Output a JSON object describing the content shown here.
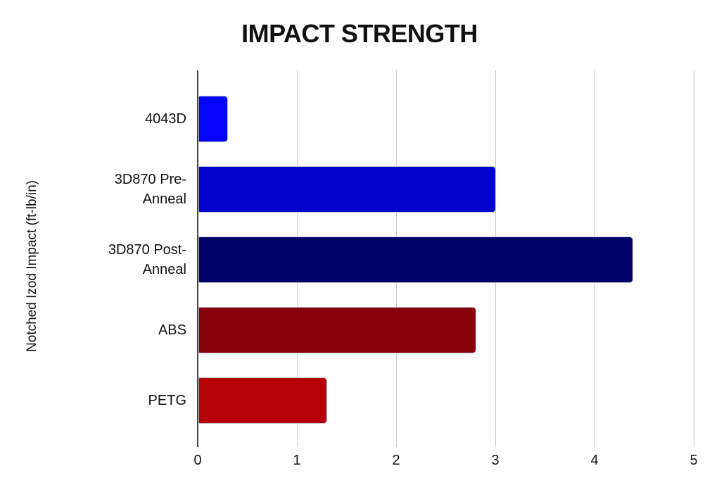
{
  "chart_data": {
    "type": "bar",
    "orientation": "horizontal",
    "title": "IMPACT STRENGTH",
    "ylabel": "Notched Izod Impact (ft-lb/in)",
    "xlabel": "",
    "categories": [
      "4043D",
      "3D870 Pre-Anneal",
      "3D870 Post-Anneal",
      "ABS",
      "PETG"
    ],
    "category_display_lines": [
      [
        "4043D"
      ],
      [
        "3D870 Pre-",
        "Anneal"
      ],
      [
        "3D870 Post-",
        "Anneal"
      ],
      [
        "ABS"
      ],
      [
        "PETG"
      ]
    ],
    "values": [
      0.3,
      3.0,
      4.38,
      2.8,
      1.3
    ],
    "bar_colors": [
      "#0505fb",
      "#0101cd",
      "#010168",
      "#87010b",
      "#b50108"
    ],
    "xlim": [
      0,
      5
    ],
    "x_ticks": [
      "0",
      "1",
      "2",
      "3",
      "4",
      "5"
    ],
    "grid": true,
    "legend": false,
    "background": "#ffffff",
    "gridline_color": "#cccccc",
    "axis_line_color": "#424242",
    "text_color": "#111111"
  }
}
